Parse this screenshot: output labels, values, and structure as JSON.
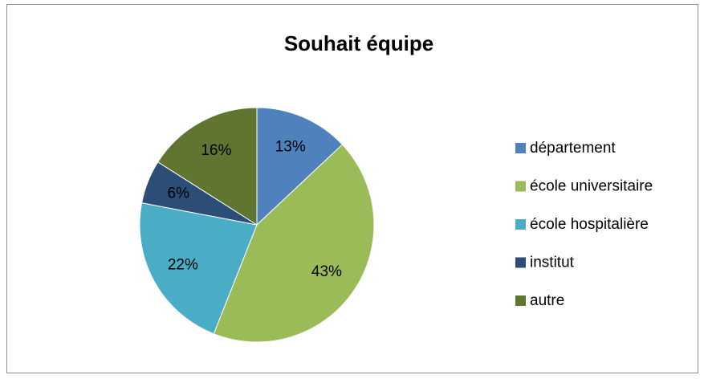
{
  "chart_data": {
    "type": "pie",
    "title": "Souhait équipe",
    "categories": [
      "département",
      "école universitaire",
      "école hospitalière",
      "institut",
      "autre"
    ],
    "values": [
      13,
      43,
      22,
      6,
      16
    ],
    "value_labels": [
      "13%",
      "43%",
      "22%",
      "6%",
      "16%"
    ],
    "colors": [
      "#4f81bd",
      "#9bbb59",
      "#4bacc6",
      "#2c4d75",
      "#5f7530"
    ],
    "legend": "right"
  }
}
